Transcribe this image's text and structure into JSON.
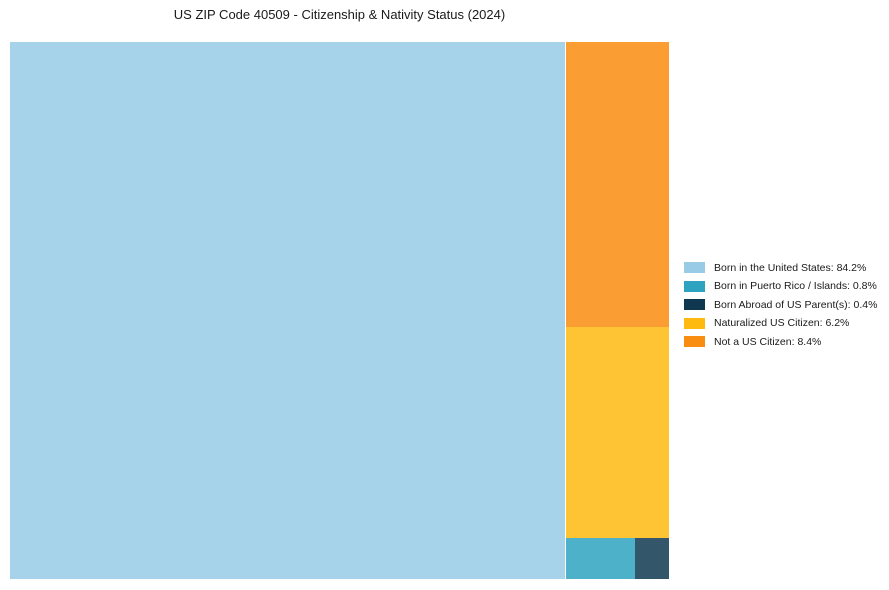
{
  "chart_data": {
    "type": "treemap",
    "title": "US ZIP Code 40509 - Citizenship & Nativity Status (2024)",
    "units": "%",
    "legend_position": "right",
    "cell_opacity": 0.85,
    "background": "#ffffff",
    "items": [
      {
        "label": "Born in the United States",
        "value": 84.2,
        "legend_text": "Born in the United States: 84.2%",
        "color": "#97CBE6"
      },
      {
        "label": "Born in Puerto Rico / Islands",
        "value": 0.8,
        "legend_text": "Born in Puerto Rico / Islands: 0.8%",
        "color": "#2EA3BF"
      },
      {
        "label": "Born Abroad of US Parent(s)",
        "value": 0.4,
        "legend_text": "Born Abroad of US Parent(s): 0.4%",
        "color": "#0F3850"
      },
      {
        "label": "Naturalized US Citizen",
        "value": 6.2,
        "legend_text": "Naturalized US Citizen: 6.2%",
        "color": "#FFBA10"
      },
      {
        "label": "Not a US Citizen",
        "value": 8.4,
        "legend_text": "Not a US Citizen: 8.4%",
        "color": "#F98D11"
      }
    ]
  }
}
